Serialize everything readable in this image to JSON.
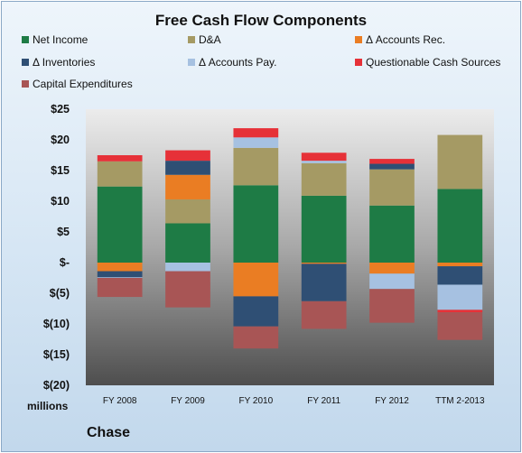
{
  "chart_data": {
    "type": "bar",
    "title": "Free Cash Flow Components",
    "units_label": "millions",
    "company": "Chase",
    "categories": [
      "FY 2008",
      "FY 2009",
      "FY 2010",
      "FY 2011",
      "FY 2012",
      "TTM 2-2013"
    ],
    "y_ticks": [
      "$25",
      "$20",
      "$15",
      "$10",
      "$5",
      "$-",
      "$(5)",
      "$(10)",
      "$(15)",
      "$(20)"
    ],
    "ylim": [
      -20,
      25
    ],
    "stacked": true,
    "series": [
      {
        "name": "Net Income",
        "color": "#1e7b45",
        "values": [
          12.4,
          6.4,
          12.6,
          10.9,
          9.3,
          12.0
        ]
      },
      {
        "name": "D&A",
        "color": "#a59a64",
        "values": [
          4.1,
          3.9,
          6.1,
          5.3,
          5.9,
          8.8
        ]
      },
      {
        "name": "Δ Accounts Rec.",
        "color": "#ea7d23",
        "values": [
          -1.4,
          4.0,
          -5.5,
          -0.2,
          -1.8,
          -0.6
        ]
      },
      {
        "name": "Δ Inventories",
        "color": "#2f4f74",
        "values": [
          -1.0,
          2.3,
          -4.9,
          -6.1,
          0.9,
          -3.0
        ]
      },
      {
        "name": "Δ Accounts Pay.",
        "color": "#a6c1e1",
        "values": [
          -0.1,
          -1.4,
          1.7,
          0.4,
          -2.5,
          -4.1
        ]
      },
      {
        "name": "Questionable Cash Sources",
        "color": "#e63138",
        "values": [
          1.0,
          1.7,
          1.5,
          1.3,
          0.8,
          -0.4
        ]
      },
      {
        "name": "Capital Expenditures",
        "color": "#a85555",
        "values": [
          -3.1,
          -5.9,
          -3.6,
          -4.5,
          -5.5,
          -4.5
        ]
      }
    ],
    "grid": false,
    "legend_position": "top"
  }
}
